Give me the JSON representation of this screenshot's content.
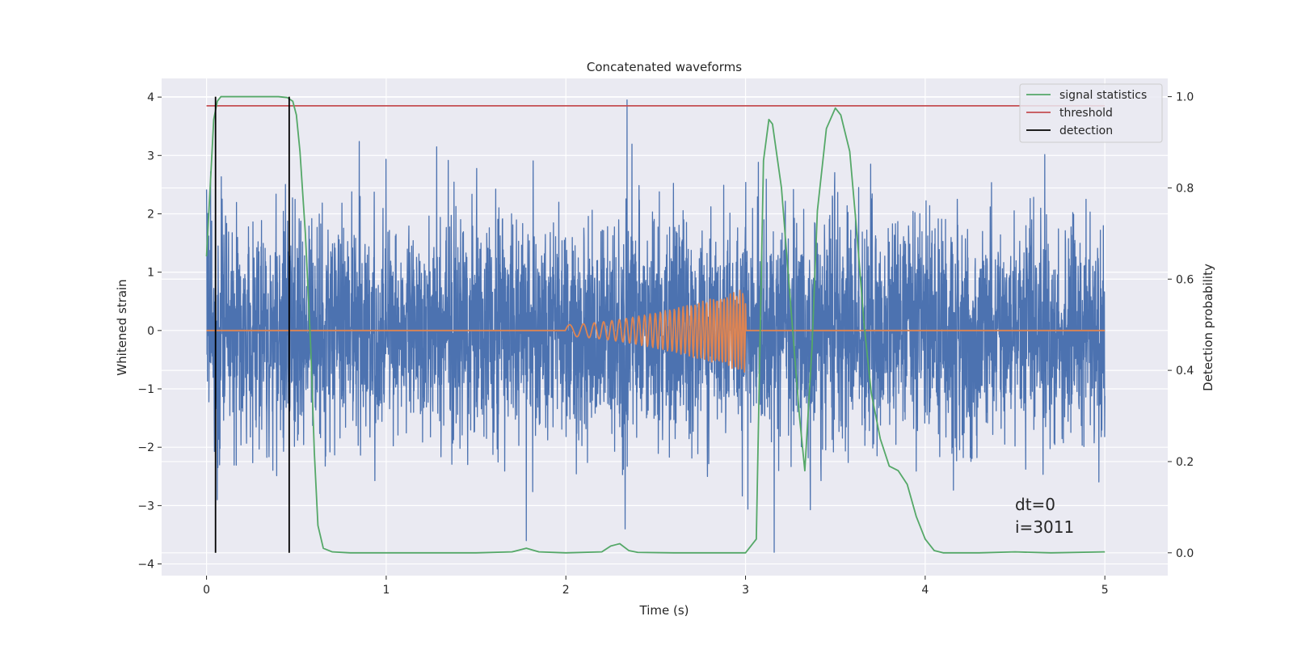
{
  "chart_data": {
    "type": "line",
    "title": "Concatenated waveforms",
    "xlabel": "Time (s)",
    "ylabel": "Whitened strain",
    "y2label": "Detection probability",
    "xlim": [
      -0.25,
      5.35
    ],
    "ylim": [
      -4.2,
      4.32
    ],
    "y2lim": [
      -0.05,
      1.04
    ],
    "xticks": [
      0,
      1,
      2,
      3,
      4,
      5
    ],
    "xtick_labels": [
      "0",
      "1",
      "2",
      "3",
      "4",
      "5"
    ],
    "yticks": [
      -4,
      -3,
      -2,
      -1,
      0,
      1,
      2,
      3,
      4
    ],
    "ytick_labels": [
      "−4",
      "−3",
      "−2",
      "−1",
      "0",
      "1",
      "2",
      "3",
      "4"
    ],
    "y2ticks": [
      0.0,
      0.2,
      0.4,
      0.6,
      0.8,
      1.0
    ],
    "y2tick_labels": [
      "0.0",
      "0.2",
      "0.4",
      "0.6",
      "0.8",
      "1.0"
    ],
    "grid": true,
    "legend_position": "top-right",
    "legend": [
      {
        "label": "signal statistics",
        "color": "#55a868"
      },
      {
        "label": "threshold",
        "color": "#c44e52"
      },
      {
        "label": "detection",
        "color": "#000000"
      }
    ],
    "series": [
      {
        "name": "whitened strain (noise)",
        "axis": "left",
        "color": "#4c72b0",
        "x_range": [
          0,
          5
        ],
        "std": 0.95,
        "peak_max": 3.95,
        "peak_min": -3.8
      },
      {
        "name": "injected waveform",
        "axis": "left",
        "color": "#dd8452",
        "x_range": [
          0,
          5
        ],
        "chirp_start": 2.0,
        "chirp_end": 3.0,
        "amplitude_start": 0.1,
        "amplitude_end": 0.72,
        "freq_start": 10,
        "freq_end": 60
      },
      {
        "name": "signal statistics",
        "axis": "right",
        "color": "#55a868",
        "x": [
          0.0,
          0.02,
          0.04,
          0.06,
          0.08,
          0.1,
          0.2,
          0.3,
          0.4,
          0.45,
          0.48,
          0.5,
          0.52,
          0.55,
          0.58,
          0.6,
          0.62,
          0.65,
          0.7,
          0.8,
          1.0,
          1.5,
          1.7,
          1.78,
          1.85,
          2.0,
          2.2,
          2.25,
          2.3,
          2.35,
          2.4,
          2.6,
          3.0,
          3.06,
          3.08,
          3.1,
          3.13,
          3.15,
          3.2,
          3.25,
          3.3,
          3.33,
          3.37,
          3.4,
          3.45,
          3.5,
          3.53,
          3.58,
          3.62,
          3.66,
          3.7,
          3.75,
          3.8,
          3.85,
          3.9,
          3.95,
          4.0,
          4.05,
          4.1,
          4.3,
          4.5,
          4.7,
          5.0
        ],
        "y": [
          0.65,
          0.8,
          0.95,
          0.99,
          1.0,
          1.0,
          1.0,
          1.0,
          1.0,
          0.998,
          0.99,
          0.96,
          0.88,
          0.7,
          0.45,
          0.22,
          0.06,
          0.01,
          0.002,
          0.0,
          0.0,
          0.0,
          0.002,
          0.01,
          0.002,
          0.0,
          0.002,
          0.015,
          0.02,
          0.005,
          0.001,
          0.0,
          0.0,
          0.03,
          0.45,
          0.86,
          0.95,
          0.94,
          0.8,
          0.55,
          0.3,
          0.18,
          0.45,
          0.75,
          0.93,
          0.975,
          0.96,
          0.88,
          0.7,
          0.5,
          0.35,
          0.25,
          0.19,
          0.18,
          0.15,
          0.08,
          0.03,
          0.005,
          0.0,
          0.0,
          0.002,
          0.0,
          0.002
        ]
      },
      {
        "name": "threshold",
        "axis": "right",
        "color": "#c44e52",
        "x": [
          0,
          5
        ],
        "y": [
          0.98,
          0.98
        ]
      },
      {
        "name": "detection",
        "axis": "right",
        "color": "#000000",
        "x": [
          0.05,
          0.46
        ],
        "y_range": [
          0,
          1
        ]
      }
    ],
    "annotations": [
      {
        "text": "dt=0",
        "x": 4.5,
        "y": -3.0
      },
      {
        "text": "i=3011",
        "x": 4.5,
        "y": -3.4
      }
    ]
  }
}
